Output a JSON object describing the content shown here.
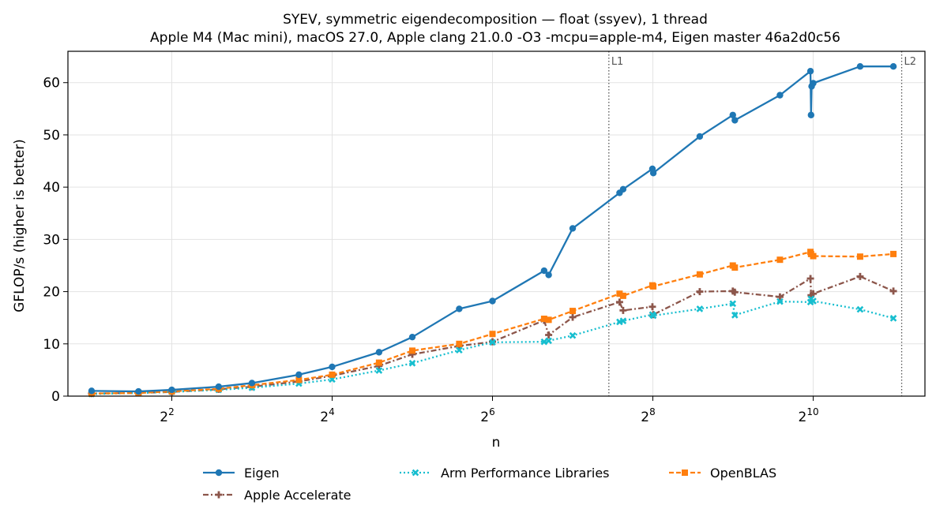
{
  "chart_data": {
    "type": "line",
    "title": "SYEV, symmetric eigendecomposition — float (ssyev), 1 thread",
    "subtitle": "Apple M4 (Mac mini), macOS 27.0, Apple clang 21.0.0 -O3 -mcpu=apple-m4, Eigen master 46a2d0c56",
    "xlabel": "n",
    "ylabel": "GFLOP/s (higher is better)",
    "xscale": "log2",
    "xlim": [
      1.63,
      2690
    ],
    "ylim": [
      0,
      66
    ],
    "xticks": [
      {
        "value": 4,
        "base": "2",
        "exp": "2"
      },
      {
        "value": 16,
        "base": "2",
        "exp": "4"
      },
      {
        "value": 64,
        "base": "2",
        "exp": "6"
      },
      {
        "value": 256,
        "base": "2",
        "exp": "8"
      },
      {
        "value": 1024,
        "base": "2",
        "exp": "10"
      }
    ],
    "yticks": [
      "0",
      "10",
      "20",
      "30",
      "40",
      "50",
      "60"
    ],
    "grid": true,
    "legend_position": "bottom",
    "reference_lines": [
      {
        "x": 175,
        "label": "L1"
      },
      {
        "x": 2200,
        "label": "L2"
      }
    ],
    "series": [
      {
        "name": "Eigen",
        "color": "#1f77b4",
        "style": "solid",
        "marker": "circle",
        "points": [
          [
            2,
            1.0
          ],
          [
            3,
            0.9
          ],
          [
            4,
            1.2
          ],
          [
            6,
            1.8
          ],
          [
            8,
            2.5
          ],
          [
            12,
            4.1
          ],
          [
            16,
            5.6
          ],
          [
            24,
            8.4
          ],
          [
            32,
            11.3
          ],
          [
            48,
            16.7
          ],
          [
            64,
            18.2
          ],
          [
            100,
            24.0
          ],
          [
            104,
            23.2
          ],
          [
            128,
            32.1
          ],
          [
            192,
            38.9
          ],
          [
            198,
            39.6
          ],
          [
            255,
            43.5
          ],
          [
            257,
            42.7
          ],
          [
            384,
            49.7
          ],
          [
            511,
            53.8
          ],
          [
            520,
            52.8
          ],
          [
            768,
            57.6
          ],
          [
            1000,
            62.2
          ],
          [
            1005,
            53.8
          ],
          [
            1010,
            59.3
          ],
          [
            1024,
            59.9
          ],
          [
            1536,
            63.1
          ],
          [
            2048,
            63.1
          ]
        ]
      },
      {
        "name": "Apple Accelerate",
        "color": "#8c564b",
        "style": "dashdot",
        "marker": "plus",
        "points": [
          [
            2,
            0.5
          ],
          [
            3,
            0.6
          ],
          [
            4,
            0.8
          ],
          [
            6,
            1.3
          ],
          [
            8,
            1.8
          ],
          [
            12,
            2.8
          ],
          [
            16,
            3.9
          ],
          [
            24,
            5.8
          ],
          [
            32,
            8.0
          ],
          [
            48,
            9.6
          ],
          [
            64,
            10.4
          ],
          [
            100,
            14.5
          ],
          [
            104,
            11.7
          ],
          [
            128,
            15.1
          ],
          [
            192,
            18.0
          ],
          [
            198,
            16.4
          ],
          [
            255,
            17.1
          ],
          [
            257,
            15.6
          ],
          [
            384,
            20.0
          ],
          [
            511,
            20.1
          ],
          [
            520,
            19.9
          ],
          [
            768,
            19.0
          ],
          [
            1000,
            22.5
          ],
          [
            1005,
            19.3
          ],
          [
            1024,
            19.6
          ],
          [
            1536,
            22.9
          ],
          [
            2048,
            20.1
          ]
        ]
      },
      {
        "name": "Arm Performance Libraries",
        "color": "#17becf",
        "style": "dotted",
        "marker": "x",
        "points": [
          [
            2,
            0.4
          ],
          [
            3,
            0.6
          ],
          [
            4,
            0.8
          ],
          [
            6,
            1.2
          ],
          [
            8,
            1.6
          ],
          [
            12,
            2.4
          ],
          [
            16,
            3.2
          ],
          [
            24,
            4.9
          ],
          [
            32,
            6.3
          ],
          [
            48,
            8.8
          ],
          [
            64,
            10.3
          ],
          [
            100,
            10.4
          ],
          [
            104,
            10.6
          ],
          [
            128,
            11.6
          ],
          [
            192,
            14.2
          ],
          [
            198,
            14.4
          ],
          [
            255,
            15.6
          ],
          [
            257,
            15.4
          ],
          [
            384,
            16.7
          ],
          [
            511,
            17.7
          ],
          [
            520,
            15.5
          ],
          [
            768,
            18.1
          ],
          [
            1000,
            18.0
          ],
          [
            1005,
            18.6
          ],
          [
            1024,
            18.2
          ],
          [
            1536,
            16.6
          ],
          [
            2048,
            14.9
          ]
        ]
      },
      {
        "name": "OpenBLAS",
        "color": "#ff7f0e",
        "style": "dashed",
        "marker": "square",
        "points": [
          [
            2,
            0.5
          ],
          [
            3,
            0.6
          ],
          [
            4,
            0.9
          ],
          [
            6,
            1.4
          ],
          [
            8,
            2.1
          ],
          [
            12,
            3.1
          ],
          [
            16,
            4.1
          ],
          [
            24,
            6.4
          ],
          [
            32,
            8.7
          ],
          [
            48,
            10.0
          ],
          [
            64,
            11.9
          ],
          [
            100,
            14.8
          ],
          [
            104,
            14.6
          ],
          [
            128,
            16.3
          ],
          [
            192,
            19.6
          ],
          [
            198,
            19.2
          ],
          [
            255,
            21.2
          ],
          [
            257,
            21.0
          ],
          [
            384,
            23.3
          ],
          [
            511,
            25.0
          ],
          [
            520,
            24.6
          ],
          [
            768,
            26.1
          ],
          [
            1000,
            27.6
          ],
          [
            1005,
            27.2
          ],
          [
            1024,
            26.8
          ],
          [
            1536,
            26.7
          ],
          [
            2048,
            27.2
          ]
        ]
      }
    ]
  }
}
